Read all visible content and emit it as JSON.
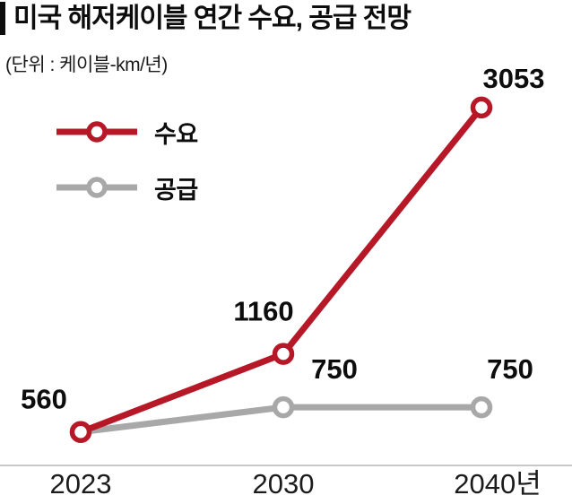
{
  "chart_data": {
    "type": "line",
    "title": "미국 해저케이블 연간 수요, 공급 전망",
    "subtitle": "(단위 : 케이블-km/년)",
    "unit": "케이블-km/년",
    "categories": [
      "2023",
      "2030",
      "2040년"
    ],
    "series": [
      {
        "name": "수요",
        "values": [
          560,
          1160,
          3053
        ],
        "color": "#b61827"
      },
      {
        "name": "공급",
        "values": [
          560,
          750,
          750
        ],
        "color": "#a8a8a8"
      }
    ],
    "data_labels": {
      "수요": [
        "560",
        "1160",
        "3053"
      ],
      "공급": [
        null,
        "750",
        "750"
      ]
    },
    "xlabel": "",
    "ylabel": "",
    "ylim": [
      0,
      3500
    ],
    "grid": false,
    "legend_position": "top-left",
    "colors": {
      "demand": "#b61827",
      "supply": "#a8a8a8",
      "axis_line": "#c9c9c9",
      "text": "#0d0d0d"
    }
  }
}
